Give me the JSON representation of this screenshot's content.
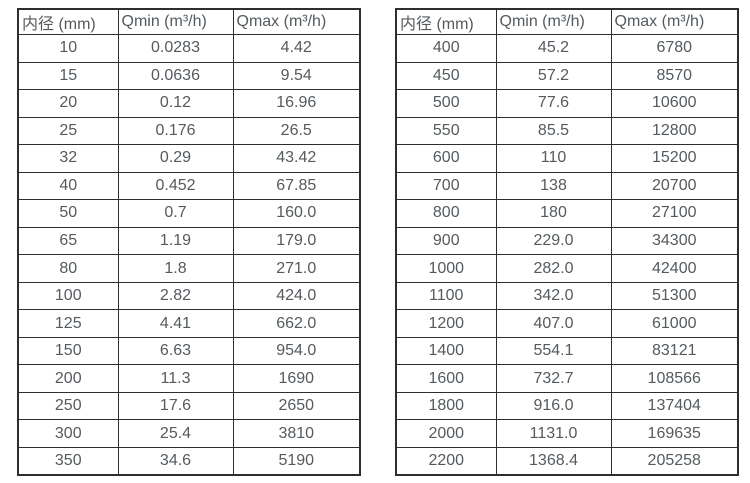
{
  "tables": [
    {
      "name": "flow-rates-small-diameters",
      "headers": [
        "内径 (mm)",
        "Qmin (m³/h)",
        "Qmax (m³/h)"
      ],
      "rows": [
        [
          "10",
          "0.0283",
          "4.42"
        ],
        [
          "15",
          "0.0636",
          "9.54"
        ],
        [
          "20",
          "0.12",
          "16.96"
        ],
        [
          "25",
          "0.176",
          "26.5"
        ],
        [
          "32",
          "0.29",
          "43.42"
        ],
        [
          "40",
          "0.452",
          "67.85"
        ],
        [
          "50",
          "0.7",
          "160.0"
        ],
        [
          "65",
          "1.19",
          "179.0"
        ],
        [
          "80",
          "1.8",
          "271.0"
        ],
        [
          "100",
          "2.82",
          "424.0"
        ],
        [
          "125",
          "4.41",
          "662.0"
        ],
        [
          "150",
          "6.63",
          "954.0"
        ],
        [
          "200",
          "11.3",
          "1690"
        ],
        [
          "250",
          "17.6",
          "2650"
        ],
        [
          "300",
          "25.4",
          "3810"
        ],
        [
          "350",
          "34.6",
          "5190"
        ]
      ]
    },
    {
      "name": "flow-rates-large-diameters",
      "headers": [
        "内径 (mm)",
        "Qmin (m³/h)",
        "Qmax (m³/h)"
      ],
      "rows": [
        [
          "400",
          "45.2",
          "6780"
        ],
        [
          "450",
          "57.2",
          "8570"
        ],
        [
          "500",
          "77.6",
          "10600"
        ],
        [
          "550",
          "85.5",
          "12800"
        ],
        [
          "600",
          "110",
          "15200"
        ],
        [
          "700",
          "138",
          "20700"
        ],
        [
          "800",
          "180",
          "27100"
        ],
        [
          "900",
          "229.0",
          "34300"
        ],
        [
          "1000",
          "282.0",
          "42400"
        ],
        [
          "1100",
          "342.0",
          "51300"
        ],
        [
          "1200",
          "407.0",
          "61000"
        ],
        [
          "1400",
          "554.1",
          "83121"
        ],
        [
          "1600",
          "732.7",
          "108566"
        ],
        [
          "1800",
          "916.0",
          "137404"
        ],
        [
          "2000",
          "1131.0",
          "169635"
        ],
        [
          "2200",
          "1368.4",
          "205258"
        ]
      ]
    }
  ],
  "colors": {
    "border": "#2e2e2e",
    "text": "#555a5e",
    "background": "#ffffff"
  }
}
